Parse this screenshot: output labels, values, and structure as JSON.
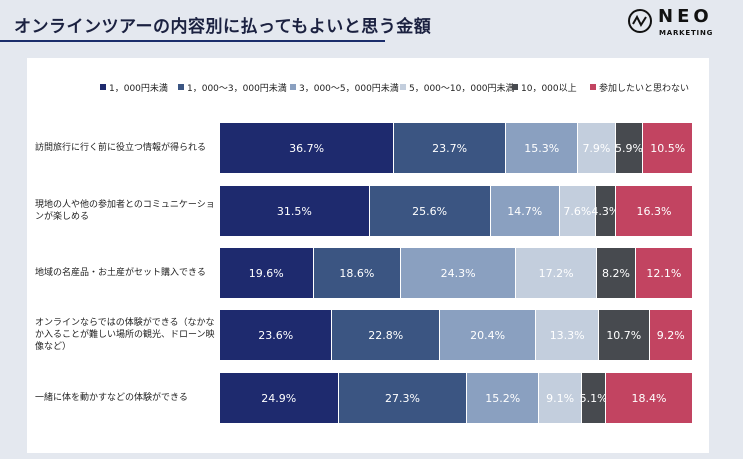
{
  "header": {
    "title": "オンラインツアーの内容別に払ってもよいと思う金額",
    "logo_text": "NEO",
    "logo_subtext": "MARKETING"
  },
  "colors": {
    "background": "#e4e8ef",
    "series": [
      "#1e2a6e",
      "#3b5582",
      "#8aa0c0",
      "#c3cedd",
      "#474a4f",
      "#c24461"
    ]
  },
  "chart_data": {
    "type": "bar",
    "orientation": "horizontal",
    "stacked": true,
    "percent": true,
    "legend_position": "top",
    "categories": [
      "訪問旅行に行く前に役立つ情報が得られる",
      "現地の人や他の参加者とのコミュニケーションが楽しめる",
      "地域の名産品・お土産がセット購入できる",
      "オンラインならではの体験ができる（なかなか入ることが難しい場所の観光、ドローン映像など）",
      "一緒に体を動かすなどの体験ができる"
    ],
    "series": [
      {
        "name": "1，000円未満",
        "values": [
          36.7,
          31.5,
          19.6,
          23.6,
          24.9
        ]
      },
      {
        "name": "1，000～3，000円未満",
        "values": [
          23.7,
          25.6,
          18.6,
          22.8,
          27.3
        ]
      },
      {
        "name": "3，000～5，000円未満",
        "values": [
          15.3,
          14.7,
          24.3,
          20.4,
          15.2
        ]
      },
      {
        "name": "5，000～10，000円未満",
        "values": [
          7.9,
          7.6,
          17.2,
          13.3,
          9.1
        ]
      },
      {
        "name": "10，000以上",
        "values": [
          5.9,
          4.3,
          8.2,
          10.7,
          5.1
        ]
      },
      {
        "name": "参加したいと思わない",
        "values": [
          10.5,
          16.3,
          12.1,
          9.2,
          18.4
        ]
      }
    ],
    "value_labels": [
      [
        "36.7%",
        "23.7%",
        "15.3%",
        "7.9%",
        "5.9%",
        "10.5%"
      ],
      [
        "31.5%",
        "25.6%",
        "14.7%",
        "7.6%",
        "4.3%",
        "16.3%"
      ],
      [
        "19.6%",
        "18.6%",
        "24.3%",
        "17.2%",
        "8.2%",
        "12.1%"
      ],
      [
        "23.6%",
        "22.8%",
        "20.4%",
        "13.3%",
        "10.7%",
        "9.2%"
      ],
      [
        "24.9%",
        "27.3%",
        "15.2%",
        "9.1%",
        "5.1%",
        "18.4%"
      ]
    ]
  }
}
